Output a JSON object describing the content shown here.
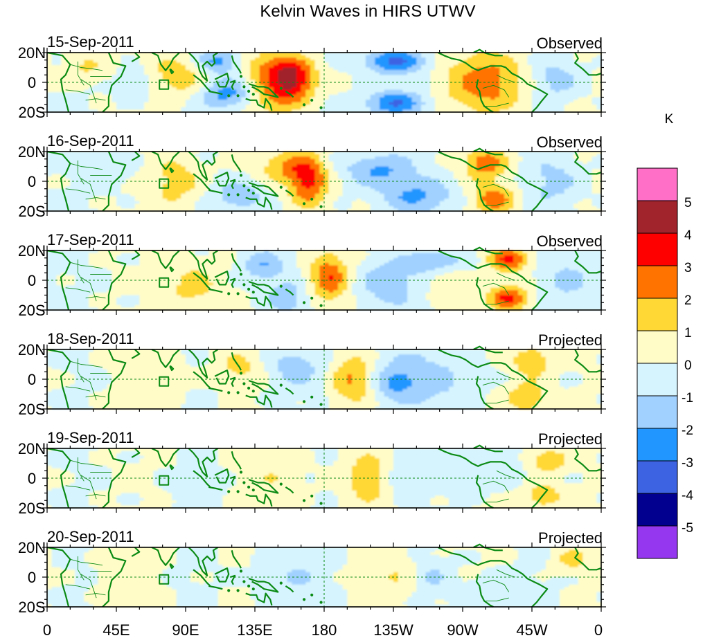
{
  "chart_data": {
    "type": "heatmap",
    "title": "Kelvin Waves in HIRS UTWV",
    "units": "K",
    "x_ticks": [
      "0",
      "45E",
      "90E",
      "135E",
      "180",
      "135W",
      "90W",
      "45W",
      "0"
    ],
    "x_tick_values": [
      0,
      45,
      90,
      135,
      180,
      225,
      270,
      315,
      360
    ],
    "y_ticks": [
      "20N",
      "0",
      "20S"
    ],
    "y_tick_values": [
      20,
      0,
      -20
    ],
    "xlim": [
      0,
      360
    ],
    "ylim": [
      -20,
      20
    ],
    "colorbar": {
      "labels": [
        "5",
        "4",
        "3",
        "2",
        "1",
        "0",
        "-1",
        "-2",
        "-3",
        "-4",
        "-5"
      ],
      "levels": [
        5,
        4,
        3,
        2,
        1,
        0,
        -1,
        -2,
        -3,
        -4,
        -5
      ],
      "colors": [
        "#ff6ec7",
        "#a1232b",
        "#ff0000",
        "#ff7300",
        "#ffd835",
        "#fffcc8",
        "#d6f4fe",
        "#a1d1ff",
        "#2196ff",
        "#3d63e3",
        "#02008f",
        "#9637f0"
      ]
    },
    "panels": [
      {
        "date": "15-Sep-2011",
        "label": "Observed",
        "blobs": [
          {
            "lon": 160,
            "lat": 2,
            "v": 3.4,
            "sx": 10,
            "sy": 9
          },
          {
            "lon": 148,
            "lat": 10,
            "v": 2.2,
            "sx": 14,
            "sy": 8
          },
          {
            "lon": 148,
            "lat": -10,
            "v": 2.0,
            "sx": 14,
            "sy": 8
          },
          {
            "lon": 285,
            "lat": 0,
            "v": 2.5,
            "sx": 20,
            "sy": 14
          },
          {
            "lon": 85,
            "lat": 4,
            "v": 1.8,
            "sx": 14,
            "sy": 10
          },
          {
            "lon": 118,
            "lat": -8,
            "v": -2.7,
            "sx": 12,
            "sy": 7
          },
          {
            "lon": 112,
            "lat": 14,
            "v": -2.5,
            "sx": 10,
            "sy": 6
          },
          {
            "lon": 225,
            "lat": 14,
            "v": -3.2,
            "sx": 14,
            "sy": 6
          },
          {
            "lon": 225,
            "lat": -14,
            "v": -3.0,
            "sx": 14,
            "sy": 6
          },
          {
            "lon": 330,
            "lat": 2,
            "v": -1.5,
            "sx": 12,
            "sy": 10
          },
          {
            "lon": 25,
            "lat": 10,
            "v": 1.2,
            "sx": 10,
            "sy": 8
          },
          {
            "lon": 60,
            "lat": 0,
            "v": -1.0,
            "sx": 10,
            "sy": 8
          }
        ]
      },
      {
        "date": "16-Sep-2011",
        "label": "Observed",
        "blobs": [
          {
            "lon": 170,
            "lat": 0,
            "v": 3.4,
            "sx": 9,
            "sy": 12
          },
          {
            "lon": 155,
            "lat": 10,
            "v": 1.8,
            "sx": 12,
            "sy": 8
          },
          {
            "lon": 285,
            "lat": 12,
            "v": 2.6,
            "sx": 10,
            "sy": 7
          },
          {
            "lon": 290,
            "lat": -12,
            "v": 2.6,
            "sx": 10,
            "sy": 7
          },
          {
            "lon": 85,
            "lat": 0,
            "v": 1.6,
            "sx": 12,
            "sy": 12
          },
          {
            "lon": 125,
            "lat": -10,
            "v": -1.8,
            "sx": 12,
            "sy": 8
          },
          {
            "lon": 215,
            "lat": 8,
            "v": -2.2,
            "sx": 16,
            "sy": 8
          },
          {
            "lon": 240,
            "lat": -10,
            "v": -2.0,
            "sx": 18,
            "sy": 8
          },
          {
            "lon": 330,
            "lat": 0,
            "v": -1.3,
            "sx": 12,
            "sy": 12
          },
          {
            "lon": 40,
            "lat": 8,
            "v": -0.8,
            "sx": 14,
            "sy": 8
          }
        ]
      },
      {
        "date": "17-Sep-2011",
        "label": "Observed",
        "blobs": [
          {
            "lon": 183,
            "lat": 2,
            "v": 3.0,
            "sx": 9,
            "sy": 12
          },
          {
            "lon": 300,
            "lat": 14,
            "v": 3.2,
            "sx": 9,
            "sy": 6
          },
          {
            "lon": 300,
            "lat": -12,
            "v": 3.2,
            "sx": 9,
            "sy": 6
          },
          {
            "lon": 95,
            "lat": -4,
            "v": 1.6,
            "sx": 12,
            "sy": 12
          },
          {
            "lon": 140,
            "lat": 10,
            "v": -2.0,
            "sx": 10,
            "sy": 8
          },
          {
            "lon": 155,
            "lat": -12,
            "v": -1.6,
            "sx": 10,
            "sy": 8
          },
          {
            "lon": 220,
            "lat": -2,
            "v": -1.8,
            "sx": 14,
            "sy": 12
          },
          {
            "lon": 255,
            "lat": 12,
            "v": -1.8,
            "sx": 14,
            "sy": 6
          },
          {
            "lon": 340,
            "lat": 0,
            "v": -1.3,
            "sx": 12,
            "sy": 12
          },
          {
            "lon": 260,
            "lat": 0,
            "v": 1.2,
            "sx": 10,
            "sy": 8
          }
        ]
      },
      {
        "date": "18-Sep-2011",
        "label": "Projected",
        "blobs": [
          {
            "lon": 198,
            "lat": 0,
            "v": 2.3,
            "sx": 10,
            "sy": 12
          },
          {
            "lon": 315,
            "lat": 12,
            "v": 2.2,
            "sx": 9,
            "sy": 7
          },
          {
            "lon": 312,
            "lat": -12,
            "v": 2.2,
            "sx": 9,
            "sy": 7
          },
          {
            "lon": 125,
            "lat": 8,
            "v": 1.2,
            "sx": 12,
            "sy": 8
          },
          {
            "lon": 160,
            "lat": 8,
            "v": -1.4,
            "sx": 14,
            "sy": 10
          },
          {
            "lon": 240,
            "lat": 0,
            "v": -1.6,
            "sx": 24,
            "sy": 14
          },
          {
            "lon": 225,
            "lat": -2,
            "v": -1.3,
            "sx": 8,
            "sy": 6
          },
          {
            "lon": 70,
            "lat": 0,
            "v": 0.8,
            "sx": 14,
            "sy": 12
          }
        ]
      },
      {
        "date": "19-Sep-2011",
        "label": "Projected",
        "blobs": [
          {
            "lon": 210,
            "lat": 0,
            "v": 1.6,
            "sx": 12,
            "sy": 12
          },
          {
            "lon": 325,
            "lat": 12,
            "v": 2.0,
            "sx": 9,
            "sy": 6
          },
          {
            "lon": 322,
            "lat": -12,
            "v": 2.0,
            "sx": 9,
            "sy": 6
          },
          {
            "lon": 150,
            "lat": 0,
            "v": 0.8,
            "sx": 14,
            "sy": 12
          },
          {
            "lon": 230,
            "lat": 0,
            "v": -1.3,
            "sx": 9,
            "sy": 8
          },
          {
            "lon": 275,
            "lat": 6,
            "v": -1.0,
            "sx": 20,
            "sy": 10
          },
          {
            "lon": 100,
            "lat": -8,
            "v": -0.7,
            "sx": 10,
            "sy": 8
          }
        ]
      },
      {
        "date": "20-Sep-2011",
        "label": "Projected",
        "blobs": [
          {
            "lon": 225,
            "lat": 0,
            "v": 0.9,
            "sx": 14,
            "sy": 12
          },
          {
            "lon": 340,
            "lat": 12,
            "v": 1.3,
            "sx": 8,
            "sy": 6
          },
          {
            "lon": 160,
            "lat": 0,
            "v": -0.9,
            "sx": 16,
            "sy": 12
          },
          {
            "lon": 250,
            "lat": 0,
            "v": -1.1,
            "sx": 8,
            "sy": 8
          },
          {
            "lon": 290,
            "lat": -8,
            "v": -0.8,
            "sx": 14,
            "sy": 8
          },
          {
            "lon": 50,
            "lat": 0,
            "v": 0.6,
            "sx": 14,
            "sy": 10
          }
        ]
      }
    ]
  }
}
